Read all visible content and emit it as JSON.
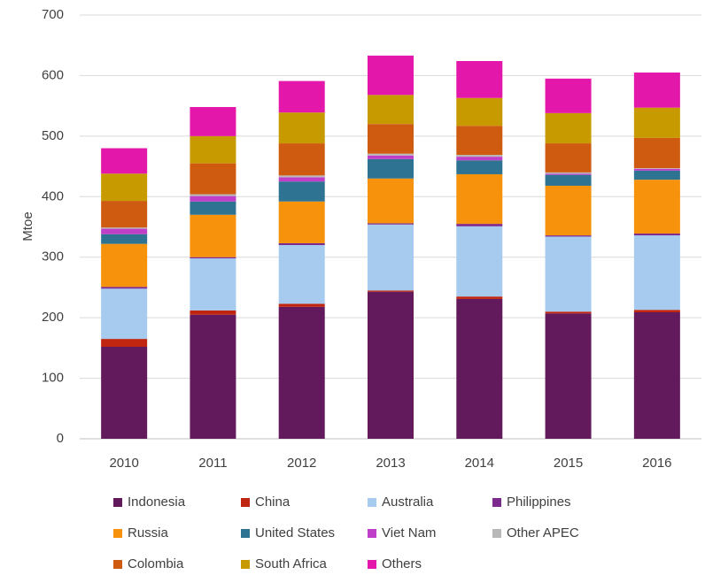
{
  "chart_data": {
    "type": "stacked_bar",
    "y_label": "Mtoe",
    "categories": [
      "2010",
      "2011",
      "2012",
      "2013",
      "2014",
      "2015",
      "2016"
    ],
    "ylim": [
      0,
      700
    ],
    "yticks": [
      0,
      100,
      200,
      300,
      400,
      500,
      600,
      700
    ],
    "grid": true,
    "legend": "bottom",
    "series": [
      {
        "name": "Indonesia",
        "color": "#621a5c",
        "values": [
          152,
          205,
          218,
          243,
          231,
          207,
          209
        ]
      },
      {
        "name": "China",
        "color": "#c0260f",
        "values": [
          13,
          7,
          5,
          2,
          4,
          3,
          4
        ]
      },
      {
        "name": "Australia",
        "color": "#a6cbef",
        "values": [
          83,
          86,
          97,
          109,
          116,
          124,
          123
        ]
      },
      {
        "name": "Philippines",
        "color": "#7c2a8e",
        "values": [
          3,
          2,
          3,
          2,
          4,
          2,
          3
        ]
      },
      {
        "name": "Russia",
        "color": "#f7920c",
        "values": [
          71,
          70,
          69,
          74,
          82,
          82,
          89
        ]
      },
      {
        "name": "United States",
        "color": "#2f7392",
        "values": [
          16,
          22,
          33,
          32,
          23,
          18,
          15
        ]
      },
      {
        "name": "Viet Nam",
        "color": "#c03fc8",
        "values": [
          9,
          9,
          7,
          6,
          6,
          2,
          3
        ]
      },
      {
        "name": "Other APEC",
        "color": "#b8b8b8",
        "values": [
          2,
          3,
          3,
          3,
          3,
          2,
          1
        ]
      },
      {
        "name": "Colombia",
        "color": "#cf5b10",
        "values": [
          44,
          51,
          53,
          49,
          48,
          48,
          50
        ]
      },
      {
        "name": "South Africa",
        "color": "#c79a00",
        "values": [
          45,
          45,
          51,
          48,
          46,
          50,
          50
        ]
      },
      {
        "name": "Others",
        "color": "#e317aa",
        "values": [
          42,
          48,
          52,
          65,
          61,
          57,
          58
        ]
      }
    ]
  }
}
